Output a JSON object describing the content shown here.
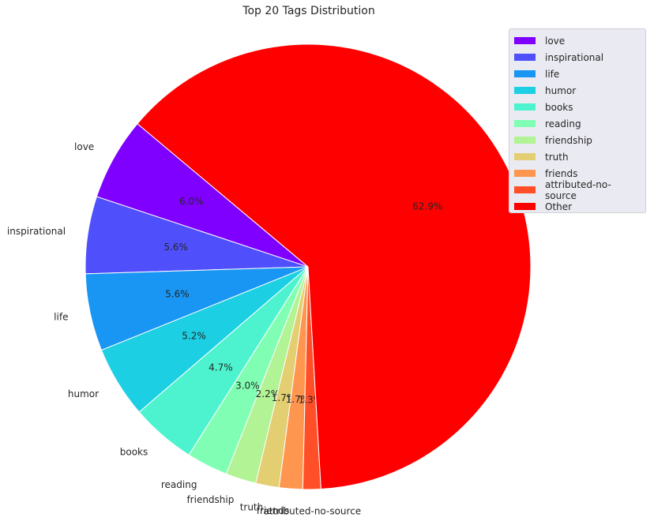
{
  "chart_data": {
    "type": "pie",
    "title": "Top 20 Tags Distribution",
    "labels": [
      "love",
      "inspirational",
      "life",
      "humor",
      "books",
      "reading",
      "friendship",
      "truth",
      "friends",
      "attributed-no-source",
      "Other"
    ],
    "pct_labels": [
      "6.0%",
      "5.6%",
      "5.6%",
      "5.2%",
      "4.7%",
      "3.0%",
      "2.2%",
      "1.7%",
      "1.7%",
      "1.3%",
      "62.9%"
    ],
    "values": [
      6.0,
      5.6,
      5.6,
      5.2,
      4.7,
      3.0,
      2.2,
      1.7,
      1.7,
      1.3,
      62.9
    ],
    "colors": [
      "#8000ff",
      "#4f4ffc",
      "#1996f3",
      "#1ccfe3",
      "#4df3ce",
      "#80ffb4",
      "#b1f395",
      "#e3cf72",
      "#ff964f",
      "#ff4f28",
      "#ff0000"
    ],
    "legend_position": "upper-right",
    "start_angle_deg": 140,
    "direction": "counterclockwise"
  }
}
